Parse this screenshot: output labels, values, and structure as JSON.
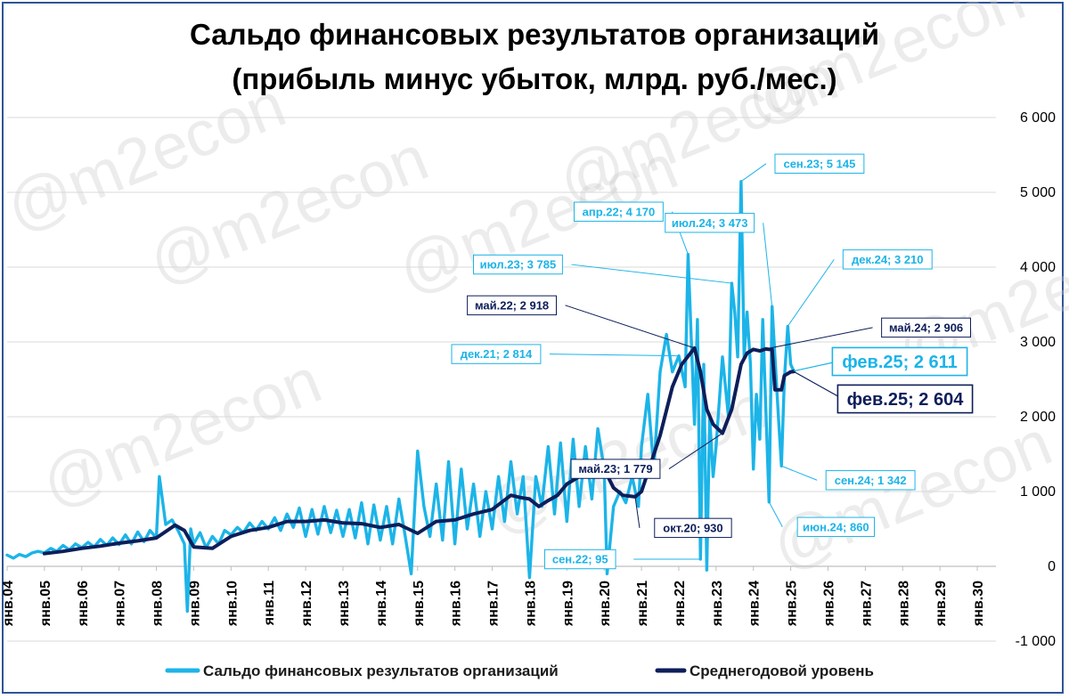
{
  "title": {
    "line1": "Сальдо финансовых результатов организаций",
    "line2": "(прибыль минус убыток, млрд. руб./мес.)"
  },
  "watermark": "@m2econ",
  "colors": {
    "monthly": "#1cb4e8",
    "average": "#0d1e5a",
    "grid": "#d9d9d9",
    "frame": "#2f5597"
  },
  "legend": {
    "monthly": "Сальдо финансовых результатов организаций",
    "average": "Среднегодовой уровень"
  },
  "chart_data": {
    "type": "line",
    "ylim": [
      -1000,
      6000
    ],
    "yticks": [
      "-1 000",
      "0",
      "1 000",
      "2 000",
      "3 000",
      "4 000",
      "5 000",
      "6 000"
    ],
    "xlabels": [
      "янв.04",
      "янв.05",
      "янв.06",
      "янв.07",
      "янв.08",
      "янв.09",
      "янв.10",
      "янв.11",
      "янв.12",
      "янв.13",
      "янв.14",
      "янв.15",
      "янв.16",
      "янв.17",
      "янв.18",
      "янв.19",
      "янв.20",
      "янв.21",
      "янв.22",
      "янв.23",
      "янв.24",
      "янв.25",
      "янв.26",
      "янв.27",
      "янв.28",
      "янв.29",
      "янв.30"
    ],
    "grid": true,
    "legend_position": "bottom",
    "series": [
      {
        "name": "Сальдо финансовых результатов организаций",
        "key": "monthly",
        "points": [
          [
            2004.0,
            150
          ],
          [
            2004.17,
            110
          ],
          [
            2004.33,
            160
          ],
          [
            2004.5,
            130
          ],
          [
            2004.67,
            180
          ],
          [
            2004.83,
            200
          ],
          [
            2005.0,
            180
          ],
          [
            2005.17,
            240
          ],
          [
            2005.33,
            200
          ],
          [
            2005.5,
            280
          ],
          [
            2005.67,
            220
          ],
          [
            2005.83,
            300
          ],
          [
            2006.0,
            250
          ],
          [
            2006.17,
            320
          ],
          [
            2006.33,
            260
          ],
          [
            2006.5,
            360
          ],
          [
            2006.67,
            280
          ],
          [
            2006.83,
            380
          ],
          [
            2007.0,
            290
          ],
          [
            2007.17,
            420
          ],
          [
            2007.33,
            300
          ],
          [
            2007.5,
            460
          ],
          [
            2007.67,
            330
          ],
          [
            2007.83,
            480
          ],
          [
            2008.0,
            380
          ],
          [
            2008.08,
            1200
          ],
          [
            2008.25,
            560
          ],
          [
            2008.42,
            620
          ],
          [
            2008.58,
            480
          ],
          [
            2008.75,
            300
          ],
          [
            2008.83,
            -600
          ],
          [
            2008.92,
            500
          ],
          [
            2009.0,
            300
          ],
          [
            2009.17,
            450
          ],
          [
            2009.33,
            250
          ],
          [
            2009.5,
            400
          ],
          [
            2009.67,
            300
          ],
          [
            2009.83,
            480
          ],
          [
            2010.0,
            420
          ],
          [
            2010.17,
            520
          ],
          [
            2010.33,
            450
          ],
          [
            2010.5,
            580
          ],
          [
            2010.67,
            480
          ],
          [
            2010.83,
            600
          ],
          [
            2011.0,
            500
          ],
          [
            2011.17,
            650
          ],
          [
            2011.33,
            480
          ],
          [
            2011.5,
            700
          ],
          [
            2011.67,
            520
          ],
          [
            2011.83,
            780
          ],
          [
            2012.0,
            400
          ],
          [
            2012.17,
            760
          ],
          [
            2012.33,
            430
          ],
          [
            2012.5,
            800
          ],
          [
            2012.67,
            450
          ],
          [
            2012.83,
            750
          ],
          [
            2013.0,
            400
          ],
          [
            2013.17,
            760
          ],
          [
            2013.33,
            380
          ],
          [
            2013.5,
            850
          ],
          [
            2013.67,
            300
          ],
          [
            2013.83,
            820
          ],
          [
            2014.0,
            350
          ],
          [
            2014.17,
            800
          ],
          [
            2014.33,
            300
          ],
          [
            2014.5,
            900
          ],
          [
            2014.67,
            400
          ],
          [
            2014.83,
            -100
          ],
          [
            2015.0,
            1540
          ],
          [
            2015.17,
            800
          ],
          [
            2015.33,
            400
          ],
          [
            2015.5,
            1100
          ],
          [
            2015.67,
            350
          ],
          [
            2015.83,
            1400
          ],
          [
            2016.0,
            300
          ],
          [
            2016.17,
            1300
          ],
          [
            2016.33,
            500
          ],
          [
            2016.5,
            1100
          ],
          [
            2016.67,
            400
          ],
          [
            2016.83,
            1000
          ],
          [
            2017.0,
            500
          ],
          [
            2017.17,
            1200
          ],
          [
            2017.33,
            600
          ],
          [
            2017.5,
            1400
          ],
          [
            2017.67,
            700
          ],
          [
            2017.83,
            1200
          ],
          [
            2018.0,
            -150
          ],
          [
            2018.17,
            1200
          ],
          [
            2018.33,
            800
          ],
          [
            2018.5,
            1600
          ],
          [
            2018.67,
            700
          ],
          [
            2018.83,
            1650
          ],
          [
            2019.0,
            600
          ],
          [
            2019.17,
            1700
          ],
          [
            2019.33,
            800
          ],
          [
            2019.5,
            1600
          ],
          [
            2019.67,
            900
          ],
          [
            2019.83,
            1840
          ],
          [
            2020.0,
            1300
          ],
          [
            2020.08,
            -100
          ],
          [
            2020.25,
            800
          ],
          [
            2020.42,
            1000
          ],
          [
            2020.58,
            850
          ],
          [
            2020.75,
            1200
          ],
          [
            2020.92,
            800
          ],
          [
            2021.0,
            1600
          ],
          [
            2021.17,
            2300
          ],
          [
            2021.33,
            1300
          ],
          [
            2021.5,
            2600
          ],
          [
            2021.67,
            3100
          ],
          [
            2021.83,
            2600
          ],
          [
            2022.0,
            2814
          ],
          [
            2022.17,
            2400
          ],
          [
            2022.25,
            4170
          ],
          [
            2022.42,
            1900
          ],
          [
            2022.5,
            3300
          ],
          [
            2022.58,
            95
          ],
          [
            2022.67,
            2700
          ],
          [
            2022.75,
            -50
          ],
          [
            2022.83,
            2000
          ],
          [
            2022.92,
            1200
          ],
          [
            2023.0,
            1600
          ],
          [
            2023.17,
            2800
          ],
          [
            2023.33,
            2000
          ],
          [
            2023.42,
            3785
          ],
          [
            2023.5,
            3400
          ],
          [
            2023.58,
            2800
          ],
          [
            2023.67,
            5145
          ],
          [
            2023.75,
            2800
          ],
          [
            2023.83,
            3400
          ],
          [
            2023.92,
            2700
          ],
          [
            2024.0,
            1300
          ],
          [
            2024.08,
            2300
          ],
          [
            2024.17,
            1700
          ],
          [
            2024.25,
            3300
          ],
          [
            2024.42,
            860
          ],
          [
            2024.5,
            3473
          ],
          [
            2024.67,
            2000
          ],
          [
            2024.75,
            1342
          ],
          [
            2024.83,
            2500
          ],
          [
            2024.92,
            3210
          ],
          [
            2025.0,
            2700
          ],
          [
            2025.08,
            2611
          ]
        ]
      },
      {
        "name": "Среднегодовой уровень",
        "key": "average",
        "points": [
          [
            2005.0,
            170
          ],
          [
            2005.5,
            200
          ],
          [
            2006.0,
            240
          ],
          [
            2006.5,
            270
          ],
          [
            2007.0,
            310
          ],
          [
            2007.5,
            340
          ],
          [
            2008.0,
            380
          ],
          [
            2008.5,
            550
          ],
          [
            2008.75,
            480
          ],
          [
            2009.0,
            260
          ],
          [
            2009.5,
            240
          ],
          [
            2010.0,
            400
          ],
          [
            2010.5,
            480
          ],
          [
            2011.0,
            520
          ],
          [
            2011.5,
            600
          ],
          [
            2012.0,
            600
          ],
          [
            2012.5,
            620
          ],
          [
            2013.0,
            580
          ],
          [
            2013.5,
            570
          ],
          [
            2014.0,
            520
          ],
          [
            2014.5,
            560
          ],
          [
            2015.0,
            440
          ],
          [
            2015.5,
            600
          ],
          [
            2016.0,
            620
          ],
          [
            2016.5,
            700
          ],
          [
            2017.0,
            760
          ],
          [
            2017.5,
            950
          ],
          [
            2017.75,
            920
          ],
          [
            2018.0,
            900
          ],
          [
            2018.25,
            800
          ],
          [
            2018.5,
            880
          ],
          [
            2018.75,
            950
          ],
          [
            2019.0,
            1100
          ],
          [
            2019.5,
            1250
          ],
          [
            2019.75,
            1280
          ],
          [
            2020.0,
            1300
          ],
          [
            2020.25,
            1050
          ],
          [
            2020.5,
            950
          ],
          [
            2020.83,
            930
          ],
          [
            2021.0,
            1000
          ],
          [
            2021.5,
            1750
          ],
          [
            2021.83,
            2400
          ],
          [
            2022.08,
            2700
          ],
          [
            2022.42,
            2918
          ],
          [
            2022.58,
            2600
          ],
          [
            2022.75,
            2100
          ],
          [
            2022.92,
            1900
          ],
          [
            2023.17,
            1779
          ],
          [
            2023.42,
            2100
          ],
          [
            2023.67,
            2700
          ],
          [
            2023.83,
            2850
          ],
          [
            2024.0,
            2900
          ],
          [
            2024.17,
            2880
          ],
          [
            2024.33,
            2906
          ],
          [
            2024.42,
            2900
          ],
          [
            2024.5,
            2900
          ],
          [
            2024.58,
            2360
          ],
          [
            2024.75,
            2360
          ],
          [
            2024.83,
            2550
          ],
          [
            2025.0,
            2600
          ],
          [
            2025.08,
            2604
          ]
        ]
      }
    ],
    "annotations": [
      {
        "series": "monthly",
        "text": "апр.22; 4 170",
        "x": 2022.25,
        "y": 4170,
        "dx": -18,
        "dy": -48
      },
      {
        "series": "monthly",
        "text": "сен.23; 5 145",
        "x": 2023.67,
        "y": 5145,
        "dx": 28,
        "dy": -20
      },
      {
        "series": "monthly",
        "text": "июл.23; 3 785",
        "x": 2023.42,
        "y": 3785,
        "dx": -180,
        "dy": -21
      },
      {
        "series": "monthly",
        "text": "июл.24; 3 473",
        "x": 2024.5,
        "y": 3473,
        "dx": -10,
        "dy": -94
      },
      {
        "series": "monthly",
        "text": "дек.24; 3 210",
        "x": 2024.92,
        "y": 3210,
        "dx": 52,
        "dy": -75
      },
      {
        "series": "monthly",
        "text": "дек.21; 2 814",
        "x": 2022.0,
        "y": 2814,
        "dx": -145,
        "dy": -2
      },
      {
        "series": "monthly",
        "text": "сен.22; 95",
        "x": 2022.58,
        "y": 95,
        "dx": -75,
        "dy": 0
      },
      {
        "series": "monthly",
        "text": "сен.24; 1 342",
        "x": 2024.75,
        "y": 1342,
        "dx": 40,
        "dy": 16
      },
      {
        "series": "monthly",
        "text": "июн.24; 860",
        "x": 2024.42,
        "y": 860,
        "dx": 15,
        "dy": 28
      },
      {
        "series": "average",
        "text": "май.22; 2 918",
        "x": 2022.42,
        "y": 2918,
        "dx": -145,
        "dy": -48
      },
      {
        "series": "average",
        "text": "май.23; 1 779",
        "x": 2023.17,
        "y": 1779,
        "dx": -60,
        "dy": 40
      },
      {
        "series": "average",
        "text": "окт.20; 930",
        "x": 2020.83,
        "y": 930,
        "dx": 5,
        "dy": 35
      },
      {
        "series": "average",
        "text": "май.24; 2 906",
        "x": 2024.33,
        "y": 2906,
        "dx": 120,
        "dy": -24
      }
    ],
    "callouts": [
      {
        "series": "monthly",
        "text": "фев.25; 2 611",
        "x": 2025.08,
        "y": 2611
      },
      {
        "series": "average",
        "text": "фев.25; 2 604",
        "x": 2025.08,
        "y": 2604
      }
    ]
  }
}
